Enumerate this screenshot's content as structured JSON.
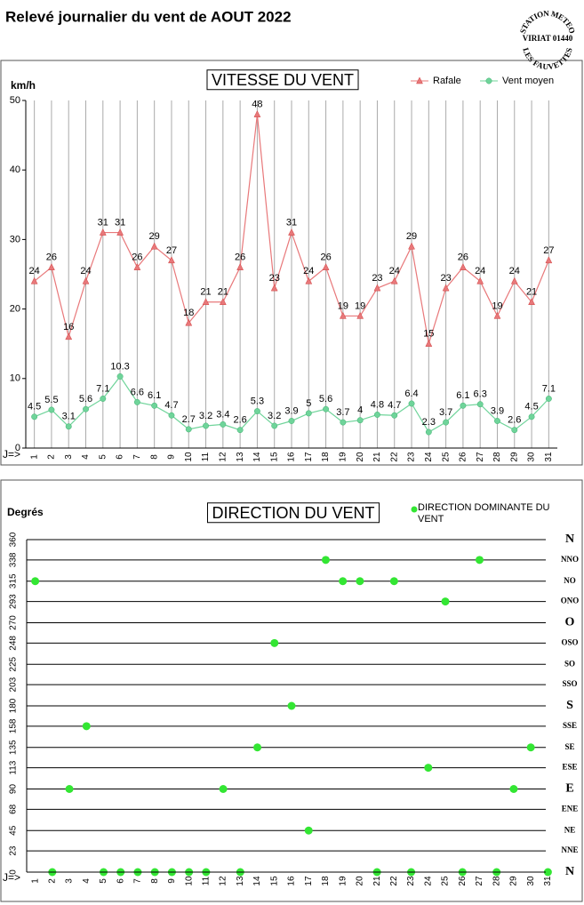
{
  "title": "Relevé journalier du vent de AOUT 2022",
  "stamp": [
    "STATION METEO",
    "VIRIAT 01440",
    "LES FAUVETTES"
  ],
  "chart_data": [
    {
      "type": "line",
      "title": "VITESSE DU VENT",
      "y_label": "km/h",
      "x_label": "J=>",
      "categories": [
        "1",
        "2",
        "3",
        "4",
        "5",
        "6",
        "7",
        "8",
        "9",
        "10",
        "11",
        "12",
        "13",
        "14",
        "15",
        "16",
        "17",
        "18",
        "19",
        "20",
        "21",
        "22",
        "23",
        "24",
        "25",
        "26",
        "27",
        "28",
        "29",
        "30",
        "31"
      ],
      "ylim": [
        0,
        50
      ],
      "yticks": [
        0,
        10,
        20,
        30,
        40,
        50
      ],
      "grid": "x",
      "legend": "top-right",
      "series": [
        {
          "name": "Rafale",
          "color": "#e8787a",
          "marker": "triangle",
          "values": [
            24,
            26,
            16,
            24,
            31,
            31,
            26,
            29,
            27,
            18,
            21,
            21,
            26,
            48,
            23,
            31,
            24,
            26,
            19,
            19,
            23,
            24,
            29,
            15,
            23,
            26,
            24,
            19,
            24,
            21,
            27
          ]
        },
        {
          "name": "Vent moyen",
          "color": "#6fd49a",
          "marker": "circle",
          "values": [
            4.5,
            5.5,
            3.1,
            5.6,
            7.1,
            10.3,
            6.6,
            6.1,
            4.7,
            2.7,
            3.2,
            3.4,
            2.6,
            5.3,
            3.2,
            3.9,
            5,
            5.6,
            3.7,
            4,
            4.8,
            4.7,
            6.4,
            2.3,
            3.7,
            6.1,
            6.3,
            3.9,
            2.6,
            4.5,
            7.1
          ]
        }
      ]
    },
    {
      "type": "scatter",
      "title": "DIRECTION DU VENT",
      "y_label": "Degrés",
      "x_label": "J=>",
      "categories": [
        "1",
        "2",
        "3",
        "4",
        "5",
        "6",
        "7",
        "8",
        "9",
        "10",
        "11",
        "12",
        "13",
        "14",
        "15",
        "16",
        "17",
        "18",
        "19",
        "20",
        "21",
        "22",
        "23",
        "24",
        "25",
        "26",
        "27",
        "28",
        "29",
        "30",
        "31"
      ],
      "ylim": [
        0,
        360
      ],
      "yticks": [
        0,
        23,
        45,
        68,
        90,
        113,
        135,
        158,
        180,
        203,
        225,
        248,
        270,
        293,
        315,
        338,
        360
      ],
      "y2lim": [
        0,
        360
      ],
      "y2ticks": [
        {
          "value": 0,
          "label": "N"
        },
        {
          "value": 23,
          "label": "NNE"
        },
        {
          "value": 45,
          "label": "NE"
        },
        {
          "value": 68,
          "label": "ENE"
        },
        {
          "value": 90,
          "label": "E"
        },
        {
          "value": 113,
          "label": "ESE"
        },
        {
          "value": 135,
          "label": "SE"
        },
        {
          "value": 158,
          "label": "SSE"
        },
        {
          "value": 180,
          "label": "S"
        },
        {
          "value": 203,
          "label": "SSO"
        },
        {
          "value": 225,
          "label": "SO"
        },
        {
          "value": 248,
          "label": "OSO"
        },
        {
          "value": 270,
          "label": "O"
        },
        {
          "value": 293,
          "label": "ONO"
        },
        {
          "value": 315,
          "label": "NO"
        },
        {
          "value": 338,
          "label": "NNO"
        },
        {
          "value": 360,
          "label": "N"
        }
      ],
      "grid": "y",
      "legend": "top-right",
      "series": [
        {
          "name": "DIRECTION DOMINANTE DU VENT",
          "color": "#33e633",
          "marker": "circle",
          "values": [
            315,
            0,
            90,
            158,
            0,
            0,
            0,
            0,
            0,
            0,
            0,
            90,
            0,
            135,
            248,
            180,
            45,
            338,
            315,
            315,
            0,
            315,
            0,
            113,
            293,
            0,
            338,
            0,
            90,
            135,
            0
          ]
        }
      ]
    }
  ]
}
